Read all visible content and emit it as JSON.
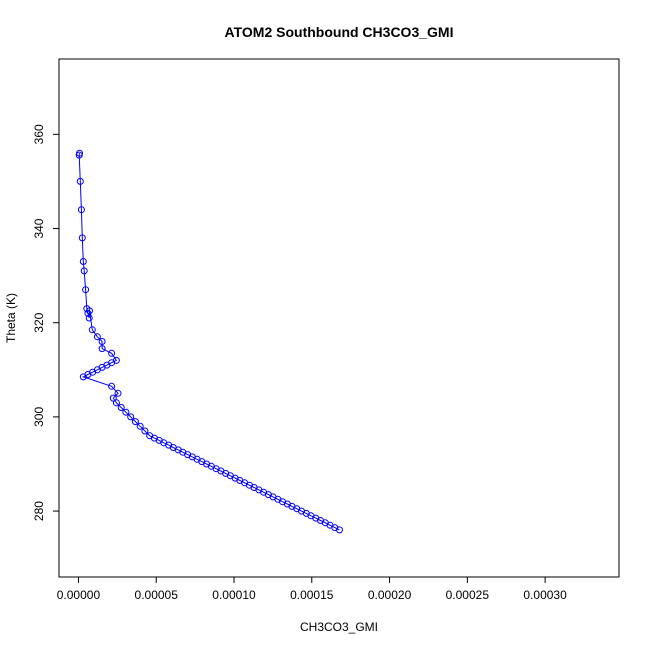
{
  "chart_data": {
    "type": "line",
    "title": "ATOM2 Southbound CH3CO3_GMI",
    "xlabel": "CH3CO3_GMI",
    "ylabel": "Theta (K)",
    "xlim": [
      -1.25e-05,
      0.0003475
    ],
    "ylim": [
      266,
      376
    ],
    "x_ticks": [
      0,
      5e-05,
      0.0001,
      0.00015,
      0.0002,
      0.00025,
      0.0003
    ],
    "x_tick_labels": [
      "0.00000",
      "0.00005",
      "0.00010",
      "0.00015",
      "0.00020",
      "0.00025",
      "0.00030"
    ],
    "y_ticks": [
      280,
      300,
      320,
      340,
      360
    ],
    "y_tick_labels": [
      "280",
      "300",
      "320",
      "340",
      "360"
    ],
    "grid": false,
    "series_color": "#0000ff",
    "series": [
      {
        "x": [
          7e-07,
          5e-07,
          1.2e-06,
          1.9e-06,
          2.5e-06,
          3.1e-06,
          3.7e-06,
          4.6e-06,
          5.4e-06,
          6.1e-06,
          6.9e-06,
          7.1e-06,
          8.9e-06,
          1.22e-05,
          1.52e-05,
          1.52e-05,
          2.13e-05,
          2.44e-05,
          2.13e-05,
          1.83e-05,
          1.52e-05,
          1.22e-05,
          9.1e-06,
          6.1e-06,
          3.1e-06,
          2.13e-05,
          2.54e-05,
          2.24e-05,
          2.44e-05,
          2.75e-05,
          3.05e-05,
          3.36e-05,
          3.66e-05,
          3.97e-05,
          4.27e-05,
          4.58e-05,
          4.88e-05,
          5.19e-05,
          5.49e-05,
          5.8e-05,
          6.1e-05,
          6.41e-05,
          6.71e-05,
          7.02e-05,
          7.32e-05,
          7.63e-05,
          7.93e-05,
          8.24e-05,
          8.54e-05,
          8.85e-05,
          9.16e-05,
          9.46e-05,
          9.77e-05,
          0.0001007,
          0.0001038,
          0.0001068,
          0.0001099,
          0.0001129,
          0.000116,
          0.000119,
          0.0001221,
          0.0001251,
          0.0001282,
          0.0001312,
          0.0001343,
          0.0001373,
          0.0001404,
          0.0001434,
          0.0001465,
          0.0001495,
          0.0001526,
          0.0001556,
          0.0001587,
          0.0001617,
          0.0001648,
          0.0001678
        ],
        "y": [
          356,
          355.6,
          350,
          344,
          338,
          333,
          331,
          327,
          323,
          322,
          321,
          322.5,
          318.5,
          317,
          316,
          314.5,
          313.5,
          312,
          311.5,
          311,
          310.5,
          310,
          309.5,
          309,
          308.5,
          306.5,
          305,
          304,
          303,
          302,
          301,
          300,
          299,
          298,
          297,
          296,
          295.5,
          295,
          294.5,
          294,
          293.5,
          293,
          292.5,
          292,
          291.5,
          291,
          290.5,
          290,
          289.5,
          289,
          288.5,
          288,
          287.5,
          287,
          286.5,
          286,
          285.5,
          285,
          284.5,
          284,
          283.5,
          283,
          282.5,
          282,
          281.5,
          281,
          280.5,
          280,
          279.5,
          279,
          278.5,
          278,
          277.5,
          277,
          276.5,
          276
        ]
      }
    ]
  }
}
